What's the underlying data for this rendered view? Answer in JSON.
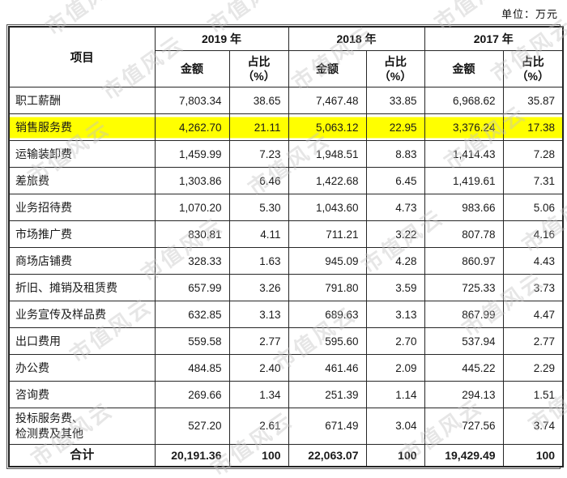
{
  "page": {
    "unit_label": "单位：万元"
  },
  "watermark": {
    "text": "市值风云"
  },
  "table": {
    "header": {
      "item_label": "项目",
      "years": [
        {
          "label": "2019 年"
        },
        {
          "label": "2018 年"
        },
        {
          "label": "2017 年"
        }
      ],
      "amount_label": "金额",
      "ratio_label": "占比\n（%）"
    },
    "rows": [
      {
        "item": "职工薪酬",
        "values": [
          "7,803.34",
          "38.65",
          "7,467.48",
          "33.85",
          "6,968.62",
          "35.87"
        ]
      },
      {
        "item": "销售服务费",
        "highlight": true,
        "values": [
          "4,262.70",
          "21.11",
          "5,063.12",
          "22.95",
          "3,376.24",
          "17.38"
        ]
      },
      {
        "item": "运输装卸费",
        "values": [
          "1,459.99",
          "7.23",
          "1,948.51",
          "8.83",
          "1,414.43",
          "7.28"
        ]
      },
      {
        "item": "差旅费",
        "values": [
          "1,303.86",
          "6.46",
          "1,422.68",
          "6.45",
          "1,419.61",
          "7.31"
        ]
      },
      {
        "item": "业务招待费",
        "values": [
          "1,070.20",
          "5.30",
          "1,043.60",
          "4.73",
          "983.66",
          "5.06"
        ]
      },
      {
        "item": "市场推广费",
        "values": [
          "830.81",
          "4.11",
          "711.21",
          "3.22",
          "807.78",
          "4.16"
        ]
      },
      {
        "item": "商场店铺费",
        "values": [
          "328.33",
          "1.63",
          "945.09",
          "4.28",
          "860.97",
          "4.43"
        ]
      },
      {
        "item": "折旧、摊销及租赁费",
        "values": [
          "657.99",
          "3.26",
          "791.80",
          "3.59",
          "725.33",
          "3.73"
        ]
      },
      {
        "item": "业务宣传及样品费",
        "values": [
          "632.85",
          "3.13",
          "689.63",
          "3.13",
          "867.99",
          "4.47"
        ]
      },
      {
        "item": "出口费用",
        "values": [
          "559.58",
          "2.77",
          "595.60",
          "2.70",
          "537.94",
          "2.77"
        ]
      },
      {
        "item": "办公费",
        "values": [
          "484.85",
          "2.40",
          "461.46",
          "2.09",
          "445.22",
          "2.29"
        ]
      },
      {
        "item": "咨询费",
        "values": [
          "269.66",
          "1.34",
          "251.39",
          "1.14",
          "294.13",
          "1.51"
        ]
      },
      {
        "item": "投标服务费、\n检测费及其他",
        "values": [
          "527.20",
          "2.61",
          "671.49",
          "3.04",
          "727.56",
          "3.74"
        ]
      },
      {
        "item": "合计",
        "total": true,
        "values": [
          "20,191.36",
          "100",
          "22,063.07",
          "100",
          "19,429.49",
          "100"
        ]
      }
    ]
  },
  "colors": {
    "highlight": "#ffff00",
    "border": "#262626",
    "text": "#1a1a1a",
    "watermark": "#c6c4c4"
  }
}
